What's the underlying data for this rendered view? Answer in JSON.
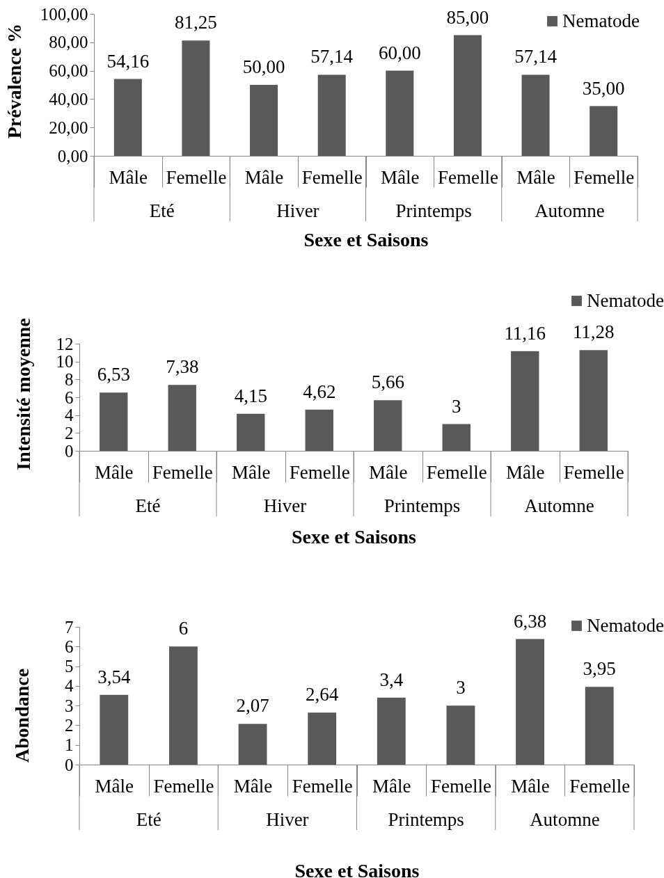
{
  "chart_data": [
    {
      "type": "bar",
      "ylabel": "Prévalence %",
      "xlabel": "Sexe et Saisons",
      "categories": [
        "Mâle",
        "Femelle",
        "Mâle",
        "Femelle",
        "Mâle",
        "Femelle",
        "Mâle",
        "Femelle"
      ],
      "annotations": [
        "Eté",
        "Hiver",
        "Printemps",
        "Automne"
      ],
      "series": [
        {
          "name": "Nematode",
          "color": "#595959",
          "values": [
            54.16,
            81.25,
            50,
            57.14,
            60,
            85,
            57.14,
            35
          ],
          "value_labels": [
            "54,16",
            "81,25",
            "50,00",
            "57,14",
            "60,00",
            "85,00",
            "57,14",
            "35,00"
          ]
        }
      ],
      "ylim": [
        0,
        100
      ],
      "yticks": [
        {
          "value": 0,
          "label": "0,00"
        },
        {
          "value": 20,
          "label": "20,00"
        },
        {
          "value": 40,
          "label": "40,00"
        },
        {
          "value": 60,
          "label": "60,00"
        },
        {
          "value": 80,
          "label": "80,00"
        },
        {
          "value": 100,
          "label": "100,00"
        }
      ],
      "legend": "top right"
    },
    {
      "type": "bar",
      "ylabel": "Intensité moyenne",
      "xlabel": "Sexe et Saisons",
      "categories": [
        "Mâle",
        "Femelle",
        "Mâle",
        "Femelle",
        "Mâle",
        "Femelle",
        "Mâle",
        "Femelle"
      ],
      "annotations": [
        "Eté",
        "Hiver",
        "Printemps",
        "Automne"
      ],
      "series": [
        {
          "name": "Nematode",
          "color": "#595959",
          "values": [
            6.53,
            7.38,
            4.15,
            4.62,
            5.66,
            3,
            11.16,
            11.28
          ],
          "value_labels": [
            "6,53",
            "7,38",
            "4,15",
            "4,62",
            "5,66",
            "3",
            "11,16",
            "11,28"
          ]
        }
      ],
      "ylim": [
        0,
        12
      ],
      "yticks": [
        0,
        2,
        4,
        6,
        8,
        10,
        12
      ],
      "legend": "top right"
    },
    {
      "type": "bar",
      "ylabel": "Abondance",
      "xlabel": "Sexe et Saisons",
      "categories": [
        "Mâle",
        "Femelle",
        "Mâle",
        "Femelle",
        "Mâle",
        "Femelle",
        "Mâle",
        "Femelle"
      ],
      "annotations": [
        "Eté",
        "Hiver",
        "Printemps",
        "Automne"
      ],
      "series": [
        {
          "name": "Nematode",
          "color": "#595959",
          "values": [
            3.54,
            6,
            2.07,
            2.64,
            3.4,
            3,
            6.38,
            3.95
          ],
          "value_labels": [
            "3,54",
            "6",
            "2,07",
            "2,64",
            "3,4",
            "3",
            "6,38",
            "3,95"
          ]
        }
      ],
      "ylim": [
        0,
        7
      ],
      "yticks": [
        0,
        1,
        2,
        3,
        4,
        5,
        6,
        7
      ],
      "legend": "top right"
    }
  ]
}
